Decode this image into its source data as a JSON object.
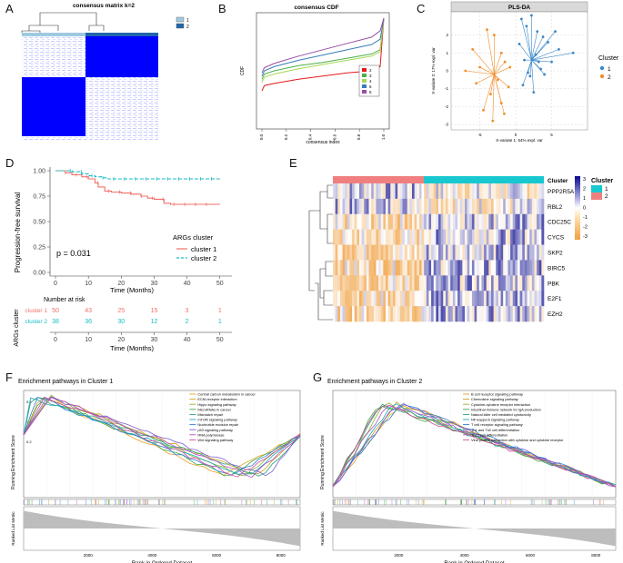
{
  "panel_labels": [
    "A",
    "B",
    "C",
    "D",
    "E",
    "F",
    "G"
  ],
  "panel_a": {
    "title": "consensus matrix k=2",
    "legend": [
      "1",
      "2"
    ],
    "colors": {
      "c1": "#9ecae1",
      "c2": "#2166ac",
      "hi": "#0000ff",
      "lo": "#ffffff"
    }
  },
  "chart_data": [
    {
      "type": "line",
      "id": "consensus-cdf",
      "title": "consensus CDF",
      "xlabel": "consensus index",
      "ylabel": "CDF",
      "x_ticks": [
        "0.0",
        "0.2",
        "0.4",
        "0.6",
        "0.8",
        "1.0"
      ],
      "xlim": [
        0,
        1
      ],
      "ylim": [
        0,
        1
      ],
      "legend": [
        "2",
        "3",
        "4",
        "5",
        "6"
      ],
      "series": [
        {
          "name": "2",
          "color": "#e41a1c",
          "x": [
            0,
            0.02,
            0.1,
            0.3,
            0.5,
            0.7,
            0.9,
            0.97,
            1.0
          ],
          "y": [
            0.31,
            0.36,
            0.38,
            0.42,
            0.45,
            0.48,
            0.5,
            0.54,
            1.0
          ]
        },
        {
          "name": "3",
          "color": "#4daf4a",
          "x": [
            0,
            0.02,
            0.1,
            0.3,
            0.5,
            0.7,
            0.9,
            0.97,
            1.0
          ],
          "y": [
            0.42,
            0.47,
            0.5,
            0.55,
            0.58,
            0.62,
            0.66,
            0.7,
            1.0
          ]
        },
        {
          "name": "4",
          "color": "#a6d854",
          "x": [
            0,
            0.02,
            0.1,
            0.3,
            0.5,
            0.7,
            0.9,
            0.97,
            1.0
          ],
          "y": [
            0.39,
            0.44,
            0.47,
            0.52,
            0.56,
            0.6,
            0.64,
            0.68,
            1.0
          ]
        },
        {
          "name": "5",
          "color": "#377eb8",
          "x": [
            0,
            0.02,
            0.1,
            0.3,
            0.5,
            0.7,
            0.9,
            0.97,
            1.0
          ],
          "y": [
            0.45,
            0.5,
            0.54,
            0.6,
            0.65,
            0.7,
            0.75,
            0.8,
            1.0
          ]
        },
        {
          "name": "6",
          "color": "#984ea3",
          "x": [
            0,
            0.02,
            0.1,
            0.3,
            0.5,
            0.7,
            0.9,
            0.97,
            1.0
          ],
          "y": [
            0.48,
            0.53,
            0.57,
            0.64,
            0.7,
            0.76,
            0.82,
            0.88,
            1.0
          ]
        }
      ]
    },
    {
      "type": "scatter",
      "id": "pls-da",
      "title": "PLS-DA",
      "xlabel": "X-variate 1: 54% expl. var",
      "ylabel": "X-variate 2: 17% expl. var",
      "x_ticks": [
        "-5",
        "0",
        "5"
      ],
      "y_ticks": [
        "2",
        "1",
        "0",
        "-1",
        "-2",
        "-3"
      ],
      "xlim": [
        -9,
        10
      ],
      "ylim": [
        -3.3,
        3.3
      ],
      "legend_title": "Cluster",
      "legend": [
        "1",
        "2"
      ],
      "series": [
        {
          "name": "1",
          "color": "#3a87c8",
          "centroid": [
            2.2,
            0.6
          ],
          "points": [
            [
              0.5,
              1.5
            ],
            [
              1.5,
              2.5
            ],
            [
              3,
              2.2
            ],
            [
              4.5,
              1.6
            ],
            [
              6,
              1.2
            ],
            [
              8,
              1.0
            ],
            [
              5,
              0.5
            ],
            [
              3.5,
              0.1
            ],
            [
              2,
              -0.3
            ],
            [
              1,
              -0.8
            ],
            [
              2.5,
              -1.2
            ],
            [
              4,
              -0.2
            ],
            [
              1.2,
              0.6
            ],
            [
              2.8,
              0.9
            ],
            [
              3.8,
              1.9
            ],
            [
              0.8,
              2.9
            ],
            [
              2.2,
              3.1
            ],
            [
              5.5,
              2.2
            ],
            [
              1.7,
              -0.1
            ],
            [
              3.2,
              0.5
            ]
          ]
        },
        {
          "name": "2",
          "color": "#f28c28",
          "centroid": [
            -3.0,
            -0.2
          ],
          "points": [
            [
              -4,
              2.3
            ],
            [
              -3,
              2.0
            ],
            [
              -6,
              1.2
            ],
            [
              -2,
              1.0
            ],
            [
              -1.5,
              0.5
            ],
            [
              -5,
              0.2
            ],
            [
              -7,
              0.0
            ],
            [
              -2.5,
              -0.5
            ],
            [
              -1,
              -0.9
            ],
            [
              -3.5,
              -1.3
            ],
            [
              -2,
              -1.8
            ],
            [
              -4.5,
              -2.2
            ],
            [
              -3.2,
              -2.8
            ],
            [
              -0.8,
              0.2
            ],
            [
              -5.5,
              -0.7
            ],
            [
              -1.6,
              -2.4
            ]
          ]
        }
      ]
    },
    {
      "type": "line",
      "id": "km-survival",
      "ylabel": "Progression-free survival",
      "xlabel": "Time (Months)",
      "x_ticks": [
        "0",
        "10",
        "20",
        "30",
        "40",
        "50"
      ],
      "y_ticks": [
        "1.00",
        "0.75",
        "0.50",
        "0.25",
        "0.00"
      ],
      "xlim": [
        0,
        52
      ],
      "ylim": [
        0,
        1
      ],
      "pvalue": "p = 0.031",
      "legend_title": "ARGs cluster",
      "legend": [
        "cluster 1",
        "cluster 2"
      ],
      "series": [
        {
          "name": "cluster 1",
          "color": "#f0706a",
          "x": [
            0,
            3,
            5,
            8,
            10,
            12,
            13,
            15,
            17,
            20,
            23,
            26,
            28,
            30,
            33,
            35,
            38,
            50
          ],
          "y": [
            1.0,
            0.98,
            0.96,
            0.94,
            0.92,
            0.88,
            0.84,
            0.8,
            0.79,
            0.78,
            0.77,
            0.75,
            0.73,
            0.72,
            0.68,
            0.67,
            0.67,
            0.67
          ]
        },
        {
          "name": "cluster 2",
          "color": "#18bcc6",
          "x": [
            0,
            5,
            8,
            10,
            12,
            14,
            16,
            18,
            50
          ],
          "y": [
            1.0,
            0.99,
            0.97,
            0.95,
            0.94,
            0.93,
            0.92,
            0.92,
            0.92
          ]
        }
      ]
    },
    {
      "type": "table",
      "id": "risk-table",
      "title": "Number at risk",
      "ylabel": "ARGs cluster",
      "xlabel": "Time (Months)",
      "x_ticks": [
        "0",
        "10",
        "20",
        "30",
        "40",
        "50"
      ],
      "rows": [
        {
          "name": "cluster 1",
          "color": "#f0706a",
          "values": [
            "50",
            "43",
            "25",
            "15",
            "3",
            "1"
          ]
        },
        {
          "name": "cluster 2",
          "color": "#18bcc6",
          "values": [
            "38",
            "36",
            "30",
            "12",
            "2",
            "1"
          ]
        }
      ]
    },
    {
      "type": "heatmap",
      "id": "gene-heatmap",
      "genes": [
        "PPP2R5A",
        "RBL2",
        "CDC25C",
        "CYCS",
        "SKP2",
        "BIRC5",
        "PBK",
        "E2F1",
        "EZH2"
      ],
      "annotation_label": "Cluster",
      "legend_title": "Cluster",
      "legend": [
        "1",
        "2"
      ],
      "cluster_colors": {
        "1": "#18c8d0",
        "2": "#f08080"
      },
      "color_scale": [
        "3",
        "2",
        "1",
        "0",
        "-1",
        "-2",
        "-3"
      ],
      "n_cluster2": 38,
      "n_cluster1": 50
    },
    {
      "type": "line",
      "id": "gsea-cluster1",
      "title": "Enrichment pathways in Cluster 1",
      "ylabel": "Running Enrichment Score",
      "ylabel2": "Ranked List Metric",
      "xlabel": "Rank in Ordered Dataset",
      "x_ticks": [
        "2000",
        "4000",
        "6000",
        "8000"
      ],
      "y_ticks": [
        "0.6",
        "0.4",
        "0.2"
      ],
      "xlim": [
        0,
        8600
      ],
      "legend": [
        "Central carbon metabolism in cancer",
        "ECM-receptor interaction",
        "Hippo signaling pathway",
        "MicroRNAs in cancer",
        "Mismatch repair",
        "mTOR signaling pathway",
        "Nucleotide excision repair",
        "p53 signaling pathway",
        "RNA polymerase",
        "Wnt signaling pathway"
      ],
      "colors": [
        "#e6a020",
        "#d4a017",
        "#8ab832",
        "#44a844",
        "#1fa27a",
        "#1aa6b8",
        "#2a7fd4",
        "#7a5cd0",
        "#b050c8",
        "#d04a9a"
      ]
    },
    {
      "type": "line",
      "id": "gsea-cluster2",
      "title": "Enrichment pathways in Cluster 2",
      "ylabel": "Running Enrichment Score",
      "ylabel2": "Ranked List Metric",
      "xlabel": "Rank in Ordered Dataset",
      "x_ticks": [
        "2000",
        "4000",
        "6000",
        "8000"
      ],
      "xlim": [
        0,
        8600
      ],
      "legend": [
        "B cell receptor signaling pathway",
        "Chemokine signaling pathway",
        "Cytokine-cytokine receptor interaction",
        "Intestinal immune network for IgA production",
        "Natural killer cell mediated cytotoxicity",
        "NF-kappa B signaling pathway",
        "T cell receptor signaling pathway",
        "Th1 and Th2 cell differentiation",
        "Th17 cell differentiation",
        "Viral protein interaction with cytokine and cytokine receptor"
      ],
      "colors": [
        "#e6a020",
        "#c0a020",
        "#8ab832",
        "#44a844",
        "#1fa27a",
        "#1aa6b8",
        "#2a7fd4",
        "#7a5cd0",
        "#b050c8",
        "#d04a9a"
      ]
    }
  ]
}
